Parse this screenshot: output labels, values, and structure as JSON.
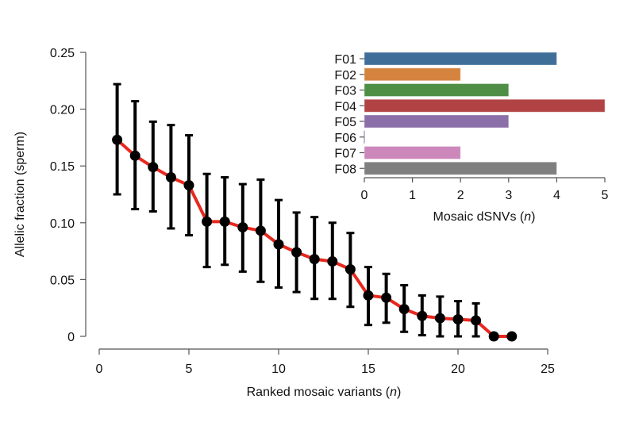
{
  "chart_data": [
    {
      "type": "line",
      "title": "",
      "xlabel": "Ranked mosaic variants",
      "xlabel_italic_suffix": "n",
      "ylabel": "Allelic fraction (sperm)",
      "xlim": [
        0,
        25
      ],
      "ylim": [
        0,
        0.25
      ],
      "xticks": [
        0,
        5,
        10,
        15,
        20,
        25
      ],
      "xtick_labels": [
        "0",
        "5",
        "10",
        "15",
        "20",
        "25"
      ],
      "yticks": [
        0,
        0.05,
        0.1,
        0.15,
        0.2,
        0.25
      ],
      "ytick_labels": [
        "0",
        "0.05",
        "0.10",
        "0.15",
        "0.20",
        "0.25"
      ],
      "grid": false,
      "line_color": "#e8281e",
      "marker_color": "#000000",
      "series": [
        {
          "name": "Allelic fraction",
          "x": [
            1,
            2,
            3,
            4,
            5,
            6,
            7,
            8,
            9,
            10,
            11,
            12,
            13,
            14,
            15,
            16,
            17,
            18,
            19,
            20,
            21,
            22,
            23
          ],
          "y": [
            0.173,
            0.159,
            0.149,
            0.14,
            0.133,
            0.101,
            0.101,
            0.096,
            0.093,
            0.081,
            0.074,
            0.068,
            0.066,
            0.059,
            0.036,
            0.034,
            0.024,
            0.018,
            0.016,
            0.015,
            0.014,
            0.0,
            0.0
          ],
          "err_low": [
            0.125,
            0.112,
            0.11,
            0.095,
            0.089,
            0.061,
            0.063,
            0.057,
            0.048,
            0.043,
            0.039,
            0.033,
            0.033,
            0.026,
            0.01,
            0.012,
            0.004,
            0.001,
            0.0,
            0.0,
            0.0,
            0.0,
            0.0
          ],
          "err_high": [
            0.222,
            0.207,
            0.189,
            0.186,
            0.177,
            0.143,
            0.14,
            0.134,
            0.138,
            0.12,
            0.109,
            0.105,
            0.1,
            0.091,
            0.061,
            0.055,
            0.045,
            0.036,
            0.035,
            0.031,
            0.029,
            0.0,
            0.0
          ]
        }
      ]
    },
    {
      "type": "bar",
      "orientation": "horizontal",
      "title": "",
      "xlabel": "Mosaic dSNVs",
      "xlabel_italic_suffix": "n",
      "ylabel": "",
      "xlim": [
        0,
        5
      ],
      "xticks": [
        0,
        1,
        2,
        3,
        4,
        5
      ],
      "xtick_labels": [
        "0",
        "1",
        "2",
        "3",
        "4",
        "5"
      ],
      "categories": [
        "F01",
        "F02",
        "F03",
        "F04",
        "F05",
        "F06",
        "F07",
        "F08"
      ],
      "values": [
        4,
        2,
        3,
        5,
        3,
        0,
        2,
        4
      ],
      "colors": [
        "#3f6f99",
        "#d5843f",
        "#4e8f45",
        "#b24344",
        "#8b6fa8",
        "#8b6fa8",
        "#cd88bb",
        "#7f7f7f"
      ],
      "grid": false,
      "legend": "none"
    }
  ]
}
